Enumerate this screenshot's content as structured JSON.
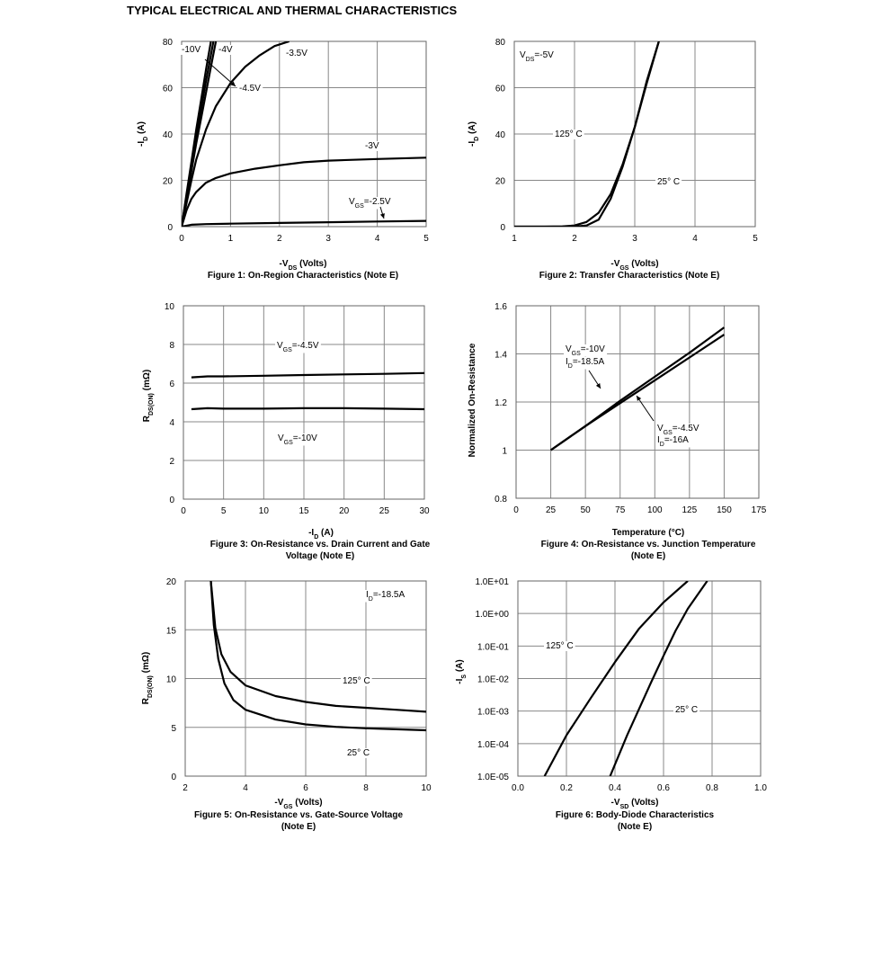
{
  "page": {
    "title": "TYPICAL ELECTRICAL AND THERMAL CHARACTERISTICS"
  },
  "chart_data": [
    {
      "type": "line",
      "caption": "Figure 1: On-Region Characteristics (Note E)",
      "xlabel": "-VDS (Volts)",
      "ylabel": "-ID (A)",
      "xlim": [
        0,
        5
      ],
      "ylim": [
        0,
        80
      ],
      "xticks": [
        0,
        1,
        2,
        3,
        4,
        5
      ],
      "yticks": [
        0,
        20,
        40,
        60,
        80
      ],
      "grid": true,
      "series": [
        {
          "name": "-10V",
          "x": [
            0,
            0.1,
            0.2,
            0.3,
            0.4,
            0.5,
            0.6
          ],
          "y": [
            0,
            14,
            28,
            42,
            55,
            68,
            80
          ]
        },
        {
          "name": "-4V",
          "x": [
            0,
            0.1,
            0.2,
            0.3,
            0.4,
            0.5,
            0.6,
            0.7
          ],
          "y": [
            0,
            12,
            24,
            36,
            47,
            58,
            69,
            80
          ]
        },
        {
          "name": "-4.5V",
          "x": [
            0,
            0.1,
            0.2,
            0.3,
            0.4,
            0.5,
            0.65
          ],
          "y": [
            0,
            13,
            26,
            39,
            51,
            63,
            80
          ]
        },
        {
          "name": "-3.5V",
          "x": [
            0,
            0.1,
            0.2,
            0.3,
            0.5,
            0.7,
            1.0,
            1.3,
            1.6,
            1.9,
            2.2
          ],
          "y": [
            0,
            10,
            20,
            29,
            42,
            52,
            62,
            69,
            74,
            78,
            80
          ]
        },
        {
          "name": "-3V",
          "x": [
            0,
            0.1,
            0.2,
            0.3,
            0.5,
            0.7,
            1.0,
            1.5,
            2.0,
            2.5,
            3.0,
            4.0,
            5.0
          ],
          "y": [
            0,
            7,
            12,
            15,
            19,
            21,
            23,
            25,
            26.5,
            27.8,
            28.5,
            29.2,
            29.8
          ]
        },
        {
          "name": "VGS=-2.5V",
          "x": [
            0,
            0.2,
            0.5,
            1,
            2,
            3,
            4,
            5
          ],
          "y": [
            0,
            0.8,
            1.1,
            1.3,
            1.6,
            1.9,
            2.2,
            2.5
          ]
        }
      ],
      "annotations": [
        "-10V",
        "-4V",
        "-3.5V",
        "-4.5V",
        "-3V",
        "VGS=-2.5V"
      ]
    },
    {
      "type": "line",
      "caption": "Figure 2: Transfer Characteristics (Note E)",
      "xlabel": "-VGS (Volts)",
      "ylabel": "-ID (A)",
      "xlim": [
        1,
        5
      ],
      "ylim": [
        0,
        80
      ],
      "xticks": [
        1,
        2,
        3,
        4,
        5
      ],
      "yticks": [
        0,
        20,
        40,
        60,
        80
      ],
      "grid": true,
      "series": [
        {
          "name": "125°C",
          "x": [
            1,
            1.5,
            1.8,
            2.0,
            2.2,
            2.4,
            2.6,
            2.8,
            3.0,
            3.2,
            3.4
          ],
          "y": [
            0,
            0,
            0.1,
            0.5,
            2,
            6,
            14,
            27,
            43,
            62,
            80
          ]
        },
        {
          "name": "25°C",
          "x": [
            1,
            2.0,
            2.2,
            2.4,
            2.6,
            2.8,
            3.0,
            3.2,
            3.4
          ],
          "y": [
            0,
            0,
            0.5,
            3,
            12,
            26,
            43,
            63,
            80
          ]
        }
      ],
      "annotations": [
        "VDS=-5V",
        "125° C",
        "25° C"
      ]
    },
    {
      "type": "line",
      "caption": "Figure 3: On-Resistance vs. Drain Current and Gate Voltage (Note E)",
      "xlabel": "-ID (A)",
      "ylabel": "RDS(ON) (mΩ)",
      "xlim": [
        0,
        30
      ],
      "ylim": [
        0,
        10
      ],
      "xticks": [
        0,
        5,
        10,
        15,
        20,
        25,
        30
      ],
      "yticks": [
        0,
        2,
        4,
        6,
        8,
        10
      ],
      "grid": true,
      "series": [
        {
          "name": "VGS=-4.5V",
          "x": [
            1,
            3,
            5,
            10,
            15,
            20,
            25,
            30
          ],
          "y": [
            6.3,
            6.35,
            6.35,
            6.38,
            6.42,
            6.45,
            6.48,
            6.52
          ]
        },
        {
          "name": "VGS=-10V",
          "x": [
            1,
            3,
            5,
            10,
            15,
            20,
            25,
            30
          ],
          "y": [
            4.65,
            4.7,
            4.68,
            4.68,
            4.7,
            4.7,
            4.68,
            4.65
          ]
        }
      ],
      "annotations": [
        "VGS=-4.5V",
        "VGS=-10V"
      ]
    },
    {
      "type": "line",
      "caption": "Figure 4: On-Resistance vs. Junction Temperature (Note E)",
      "xlabel": "Temperature (°C)",
      "ylabel": "Normalized On-Resistance",
      "xlim": [
        0,
        175
      ],
      "ylim": [
        0.8,
        1.6
      ],
      "xticks": [
        0,
        25,
        50,
        75,
        100,
        125,
        150,
        175
      ],
      "yticks": [
        0.8,
        1.0,
        1.2,
        1.4,
        1.6
      ],
      "grid": true,
      "series": [
        {
          "name": "VGS=-10V, ID=-18.5A",
          "x": [
            25,
            50,
            75,
            100,
            125,
            150
          ],
          "y": [
            1.0,
            1.1,
            1.205,
            1.305,
            1.405,
            1.51
          ]
        },
        {
          "name": "VGS=-4.5V, ID=-16A",
          "x": [
            25,
            50,
            75,
            100,
            125,
            150
          ],
          "y": [
            1.0,
            1.1,
            1.195,
            1.29,
            1.385,
            1.48
          ]
        }
      ],
      "annotations": [
        "VGS=-10V",
        "ID=-18.5A",
        "VGS=-4.5V",
        "ID=-16A"
      ]
    },
    {
      "type": "line",
      "caption": "Figure 5: On-Resistance vs. Gate-Source Voltage (Note E)",
      "xlabel": "-VGS (Volts)",
      "ylabel": "RDS(ON) (mΩ)",
      "xlim": [
        2,
        10
      ],
      "ylim": [
        0,
        20
      ],
      "xticks": [
        2,
        4,
        6,
        8,
        10
      ],
      "yticks": [
        0,
        5,
        10,
        15,
        20
      ],
      "grid": true,
      "series": [
        {
          "name": "125°C",
          "x": [
            2.85,
            3.0,
            3.2,
            3.5,
            4,
            5,
            6,
            7,
            8,
            9,
            10
          ],
          "y": [
            20,
            15.2,
            12.5,
            10.7,
            9.3,
            8.2,
            7.6,
            7.2,
            7.0,
            6.8,
            6.6
          ]
        },
        {
          "name": "25°C",
          "x": [
            2.85,
            2.95,
            3.1,
            3.3,
            3.6,
            4,
            5,
            6,
            7,
            8,
            9,
            10
          ],
          "y": [
            20,
            15.5,
            12,
            9.5,
            7.8,
            6.8,
            5.8,
            5.3,
            5.05,
            4.9,
            4.8,
            4.7
          ]
        }
      ],
      "annotations": [
        "ID=-18.5A",
        "125° C",
        "25° C"
      ]
    },
    {
      "type": "line",
      "caption": "Figure 6: Body-Diode Characteristics (Note E)",
      "xlabel": "-VSD (Volts)",
      "ylabel": "-IS (A)",
      "xlim": [
        0,
        1.0
      ],
      "ylim": [
        1e-05,
        10
      ],
      "yscale": "log",
      "xticks": [
        "0.0",
        "0.2",
        "0.4",
        "0.6",
        "0.8",
        "1.0"
      ],
      "yticks": [
        "1.0E+01",
        "1.0E+00",
        "1.0E-01",
        "1.0E-02",
        "1.0E-03",
        "1.0E-04",
        "1.0E-05"
      ],
      "grid": true,
      "series": [
        {
          "name": "125°C",
          "x": [
            0.11,
            0.2,
            0.3,
            0.4,
            0.5,
            0.6,
            0.7
          ],
          "y": [
            1e-05,
            0.00018,
            0.0025,
            0.032,
            0.35,
            2.2,
            10
          ]
        },
        {
          "name": "25°C",
          "x": [
            0.38,
            0.45,
            0.5,
            0.55,
            0.6,
            0.65,
            0.7,
            0.78
          ],
          "y": [
            1e-05,
            0.00018,
            0.0012,
            0.008,
            0.05,
            0.3,
            1.4,
            10
          ]
        }
      ],
      "annotations": [
        "125° C",
        "25° C"
      ]
    }
  ]
}
